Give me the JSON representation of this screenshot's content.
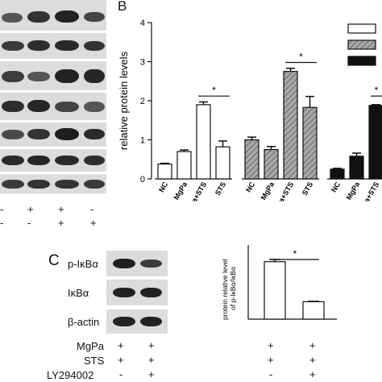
{
  "panel_a": {
    "signs_row1": [
      "-",
      "+",
      "+",
      "-"
    ],
    "signs_row2": [
      "-",
      "-",
      "+",
      "+"
    ]
  },
  "panel_c": {
    "letter": "C",
    "blot_labels": [
      "p-IκBα",
      "IκBα",
      "β-actin"
    ],
    "treatments": [
      {
        "label": "MgPa",
        "signs": [
          "+",
          "+"
        ]
      },
      {
        "label": "STS",
        "signs": [
          "+",
          "+"
        ]
      },
      {
        "label": "LY294002",
        "signs": [
          "-",
          "+"
        ]
      }
    ],
    "bar_signs": [
      [
        "+",
        "+"
      ],
      [
        "+",
        "+"
      ],
      [
        "-",
        "+"
      ]
    ]
  },
  "colors": {
    "series1": "#ffffff",
    "series2": "#a8a8a8",
    "series3": "#111111",
    "axis": "#111111"
  },
  "chart_data": [
    {
      "panel": "B",
      "type": "bar",
      "ylabel": "relative protein levels",
      "ylim": [
        0,
        4
      ],
      "yticks": [
        "0",
        "1",
        "2",
        "3",
        "4"
      ],
      "categories": [
        "NC",
        "MgPa",
        "MgPa+STS",
        "STS"
      ],
      "series": [
        {
          "fill": "white",
          "values": [
            0.38,
            0.7,
            1.9,
            0.82
          ],
          "errors": [
            0.02,
            0.04,
            0.07,
            0.15
          ]
        },
        {
          "fill": "hatched",
          "values": [
            1.0,
            0.75,
            2.75,
            1.83
          ],
          "errors": [
            0.07,
            0.08,
            0.08,
            0.28
          ]
        },
        {
          "fill": "black",
          "values": [
            0.25,
            0.58,
            1.88,
            null
          ],
          "errors": [
            0.02,
            0.08,
            0.02,
            null
          ]
        }
      ],
      "significance": [
        "*",
        "*",
        "*"
      ],
      "legend_placement": "top-right"
    },
    {
      "type": "bar",
      "ylabel": "protein relative level\nof p-IκBα/IκBα",
      "ylim": [
        0,
        2.0
      ],
      "values": [
        1.55,
        0.47
      ],
      "errors": [
        0.06,
        0.01
      ],
      "significance": "*"
    }
  ]
}
